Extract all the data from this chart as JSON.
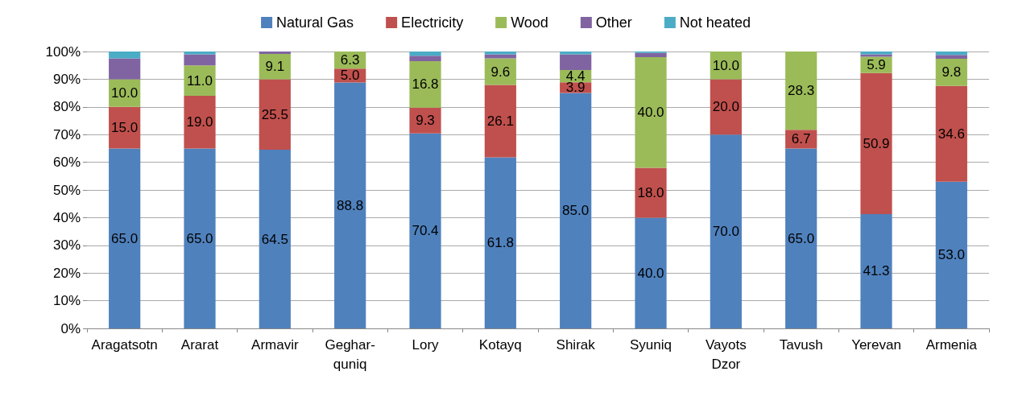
{
  "chart_data": {
    "type": "bar",
    "stacked": true,
    "categories": [
      "Aragatsotn",
      "Ararat",
      "Armavir",
      "Geghar-\nquniq",
      "Lory",
      "Kotayq",
      "Shirak",
      "Syuniq",
      "Vayots\nDzor",
      "Tavush",
      "Yerevan",
      "Armenia"
    ],
    "series": [
      {
        "name": "Natural Gas",
        "color": "#4f81bd",
        "values": [
          65.0,
          65.0,
          64.5,
          88.8,
          70.4,
          61.8,
          85.0,
          40.0,
          70.0,
          65.0,
          41.3,
          53.0
        ],
        "value_labels": [
          "65.0",
          "65.0",
          "64.5",
          "88.8",
          "70.4",
          "61.8",
          "85.0",
          "40.0",
          "70.0",
          "65.0",
          "41.3",
          "53.0"
        ]
      },
      {
        "name": "Electricity",
        "color": "#c0504d",
        "values": [
          15.0,
          19.0,
          25.5,
          5.0,
          9.3,
          26.1,
          3.9,
          18.0,
          20.0,
          6.7,
          50.9,
          34.6
        ],
        "value_labels": [
          "15.0",
          "19.0",
          "25.5",
          "5.0",
          "9.3",
          "26.1",
          "3.9",
          "18.0",
          "20.0",
          "6.7",
          "50.9",
          "34.6"
        ]
      },
      {
        "name": "Wood",
        "color": "#9bbb59",
        "values": [
          10.0,
          11.0,
          9.1,
          6.3,
          16.8,
          9.6,
          4.4,
          40.0,
          10.0,
          28.3,
          5.9,
          9.8
        ],
        "value_labels": [
          "10.0",
          "11.0",
          "9.1",
          "6.3",
          "16.8",
          "9.6",
          "4.4",
          "40.0",
          "10.0",
          "28.3",
          "5.9",
          "9.8"
        ]
      },
      {
        "name": "Other",
        "color": "#8064a2",
        "values": [
          7.5,
          4.0,
          0.9,
          0,
          2.0,
          1.5,
          5.7,
          1.5,
          0,
          0,
          0.9,
          1.4
        ]
      },
      {
        "name": "Not heated",
        "color": "#4bacc6",
        "values": [
          2.5,
          1.0,
          0,
          0,
          1.5,
          1.0,
          1.0,
          0.5,
          0,
          0,
          1.0,
          1.2
        ]
      }
    ],
    "ylim": [
      0,
      100
    ],
    "yticks": [
      {
        "value": 0,
        "label": "0%"
      },
      {
        "value": 10,
        "label": "10%"
      },
      {
        "value": 20,
        "label": "20%"
      },
      {
        "value": 30,
        "label": "30%"
      },
      {
        "value": 40,
        "label": "40%"
      },
      {
        "value": 50,
        "label": "50%"
      },
      {
        "value": 60,
        "label": "60%"
      },
      {
        "value": 70,
        "label": "70%"
      },
      {
        "value": 80,
        "label": "80%"
      },
      {
        "value": 90,
        "label": "90%"
      },
      {
        "value": 100,
        "label": "100%"
      }
    ],
    "grid": "y",
    "legend": "top"
  }
}
